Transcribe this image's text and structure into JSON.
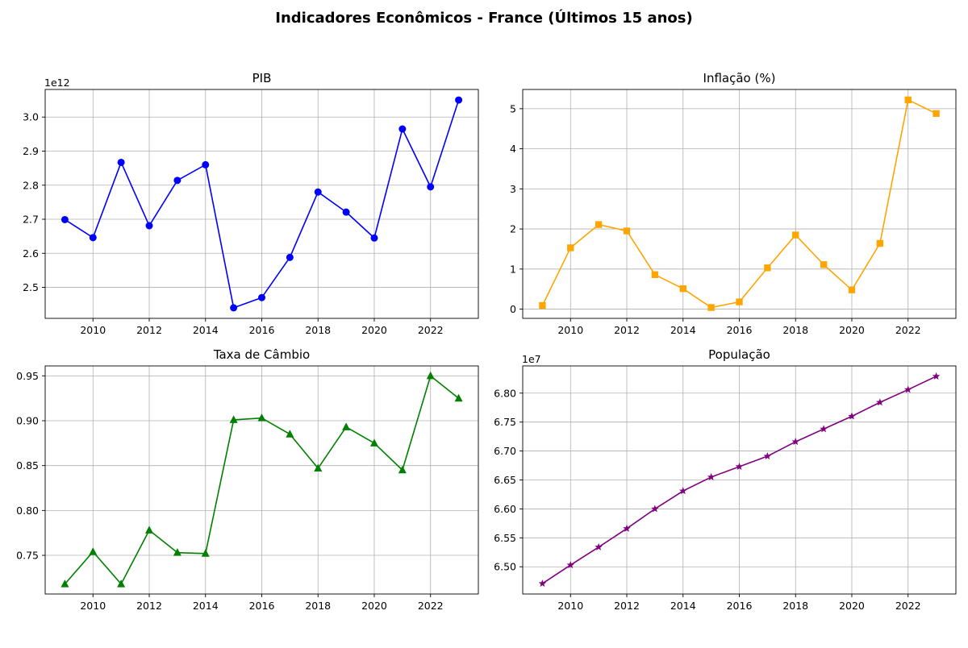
{
  "figure": {
    "suptitle": "Indicadores Econômicos - France (Últimos 15 anos)"
  },
  "chart_data": [
    {
      "type": "line",
      "title": "PIB",
      "xlabel": "",
      "ylabel": "",
      "offset_text": "1e12",
      "scale": 1000000000000.0,
      "color": "#0000ff",
      "marker": "circle",
      "x": [
        2009,
        2010,
        2011,
        2012,
        2013,
        2014,
        2015,
        2016,
        2017,
        2018,
        2019,
        2020,
        2021,
        2022,
        2023
      ],
      "values": [
        2699000000000.0,
        2646000000000.0,
        2867000000000.0,
        2681000000000.0,
        2814000000000.0,
        2860000000000.0,
        2440000000000.0,
        2470000000000.0,
        2588000000000.0,
        2780000000000.0,
        2721000000000.0,
        2645000000000.0,
        2965000000000.0,
        2795000000000.0,
        3050000000000.0
      ],
      "xlim": [
        2008.3,
        2023.7
      ],
      "ylim": [
        2409000000000.0,
        3081000000000.0
      ],
      "xticks": [
        2010,
        2012,
        2014,
        2016,
        2018,
        2020,
        2022
      ],
      "xtick_labels": [
        "2010",
        "2012",
        "2014",
        "2016",
        "2018",
        "2020",
        "2022"
      ],
      "yticks": [
        2500000000000.0,
        2600000000000.0,
        2700000000000.0,
        2800000000000.0,
        2900000000000.0,
        3000000000000.0
      ],
      "ytick_labels": [
        "2.5",
        "2.6",
        "2.7",
        "2.8",
        "2.9",
        "3.0"
      ],
      "grid": true
    },
    {
      "type": "line",
      "title": "Inflação (%)",
      "xlabel": "",
      "ylabel": "",
      "offset_text": "",
      "scale": 1,
      "color": "#ffa500",
      "marker": "square",
      "x": [
        2009,
        2010,
        2011,
        2012,
        2013,
        2014,
        2015,
        2016,
        2017,
        2018,
        2019,
        2020,
        2021,
        2022,
        2023
      ],
      "values": [
        0.09,
        1.53,
        2.11,
        1.95,
        0.86,
        0.51,
        0.04,
        0.18,
        1.03,
        1.85,
        1.11,
        0.48,
        1.64,
        5.22,
        4.88
      ],
      "xlim": [
        2008.3,
        2023.7
      ],
      "ylim": [
        -0.23,
        5.48
      ],
      "xticks": [
        2010,
        2012,
        2014,
        2016,
        2018,
        2020,
        2022
      ],
      "xtick_labels": [
        "2010",
        "2012",
        "2014",
        "2016",
        "2018",
        "2020",
        "2022"
      ],
      "yticks": [
        0,
        1,
        2,
        3,
        4,
        5
      ],
      "ytick_labels": [
        "0",
        "1",
        "2",
        "3",
        "4",
        "5"
      ],
      "grid": true
    },
    {
      "type": "line",
      "title": "Taxa de Câmbio",
      "xlabel": "",
      "ylabel": "",
      "offset_text": "",
      "scale": 1,
      "color": "#008000",
      "marker": "triangle",
      "x": [
        2009,
        2010,
        2011,
        2012,
        2013,
        2014,
        2015,
        2016,
        2017,
        2018,
        2019,
        2020,
        2021,
        2022,
        2023
      ],
      "values": [
        0.718,
        0.754,
        0.718,
        0.778,
        0.753,
        0.752,
        0.901,
        0.903,
        0.885,
        0.847,
        0.893,
        0.875,
        0.845,
        0.95,
        0.925
      ],
      "xlim": [
        2008.3,
        2023.7
      ],
      "ylim": [
        0.7069,
        0.9611
      ],
      "xticks": [
        2010,
        2012,
        2014,
        2016,
        2018,
        2020,
        2022
      ],
      "xtick_labels": [
        "2010",
        "2012",
        "2014",
        "2016",
        "2018",
        "2020",
        "2022"
      ],
      "yticks": [
        0.75,
        0.8,
        0.85,
        0.9,
        0.95
      ],
      "ytick_labels": [
        "0.75",
        "0.80",
        "0.85",
        "0.90",
        "0.95"
      ],
      "grid": true
    },
    {
      "type": "line",
      "title": "População",
      "xlabel": "",
      "ylabel": "",
      "offset_text": "1e7",
      "scale": 10000000.0,
      "color": "#800080",
      "marker": "star",
      "x": [
        2009,
        2010,
        2011,
        2012,
        2013,
        2014,
        2015,
        2016,
        2017,
        2018,
        2019,
        2020,
        2021,
        2022,
        2023
      ],
      "values": [
        64710000,
        65030000,
        65340000,
        65660000,
        66000000,
        66310000,
        66550000,
        66730000,
        66910000,
        67160000,
        67380000,
        67600000,
        67840000,
        68060000,
        68290000
      ],
      "xlim": [
        2008.3,
        2023.7
      ],
      "ylim": [
        64530000,
        68470000
      ],
      "xticks": [
        2010,
        2012,
        2014,
        2016,
        2018,
        2020,
        2022
      ],
      "xtick_labels": [
        "2010",
        "2012",
        "2014",
        "2016",
        "2018",
        "2020",
        "2022"
      ],
      "yticks": [
        65000000,
        65500000,
        66000000,
        66500000,
        67000000,
        67500000,
        68000000
      ],
      "ytick_labels": [
        "6.50",
        "6.55",
        "6.60",
        "6.65",
        "6.70",
        "6.75",
        "6.80"
      ],
      "grid": true
    }
  ]
}
